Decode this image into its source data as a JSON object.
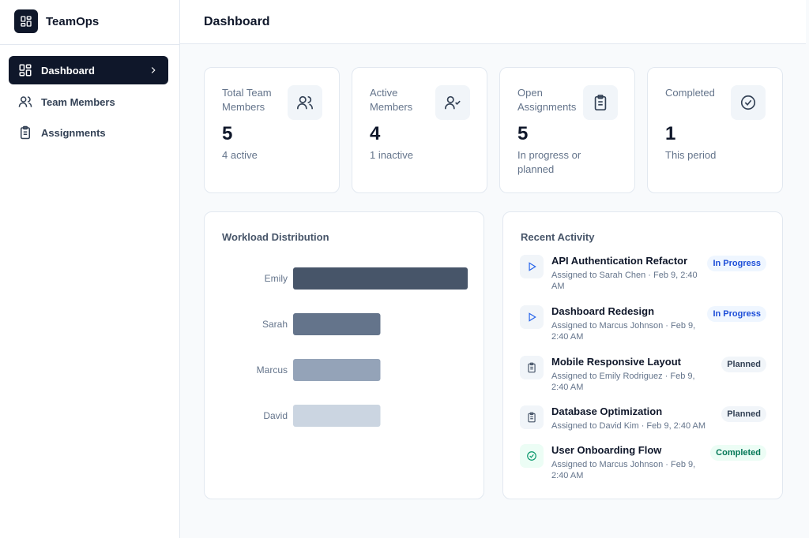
{
  "sidebar": {
    "brand": "TeamOps",
    "nav": [
      "Dashboard",
      "Team Members",
      "Assignments"
    ]
  },
  "header": {
    "title": "Dashboard"
  },
  "stats": [
    {
      "label": "Total Team Members",
      "value": 5,
      "sub": "4 active"
    },
    {
      "label": "Active Members",
      "value": 4,
      "sub": "1 inactive"
    },
    {
      "label": "Open Assignments",
      "value": 5,
      "sub": "In progress or planned"
    },
    {
      "label": "Completed",
      "value": 1,
      "sub": "This period"
    }
  ],
  "chart_data": {
    "type": "bar",
    "orientation": "horizontal",
    "title": "Workload Distribution",
    "categories": [
      "Emily",
      "Sarah",
      "Marcus",
      "David"
    ],
    "values": [
      2,
      1,
      1,
      1
    ],
    "colors": [
      "#475569",
      "#64748b",
      "#94a3b8",
      "#cbd5e1"
    ]
  },
  "activity": {
    "title": "Recent Activity",
    "items": [
      {
        "title": "API Authentication Refactor",
        "meta": "Assigned to Sarah Chen · Feb 9, 2:40 AM",
        "status": "In Progress"
      },
      {
        "title": "Dashboard Redesign",
        "meta": "Assigned to Marcus Johnson · Feb 9, 2:40 AM",
        "status": "In Progress"
      },
      {
        "title": "Mobile Responsive Layout",
        "meta": "Assigned to Emily Rodriguez · Feb 9, 2:40 AM",
        "status": "Planned"
      },
      {
        "title": "Database Optimization",
        "meta": "Assigned to David Kim · Feb 9, 2:40 AM",
        "status": "Planned"
      },
      {
        "title": "User Onboarding Flow",
        "meta": "Assigned to Marcus Johnson · Feb 9, 2:40 AM",
        "status": "Completed"
      }
    ]
  }
}
